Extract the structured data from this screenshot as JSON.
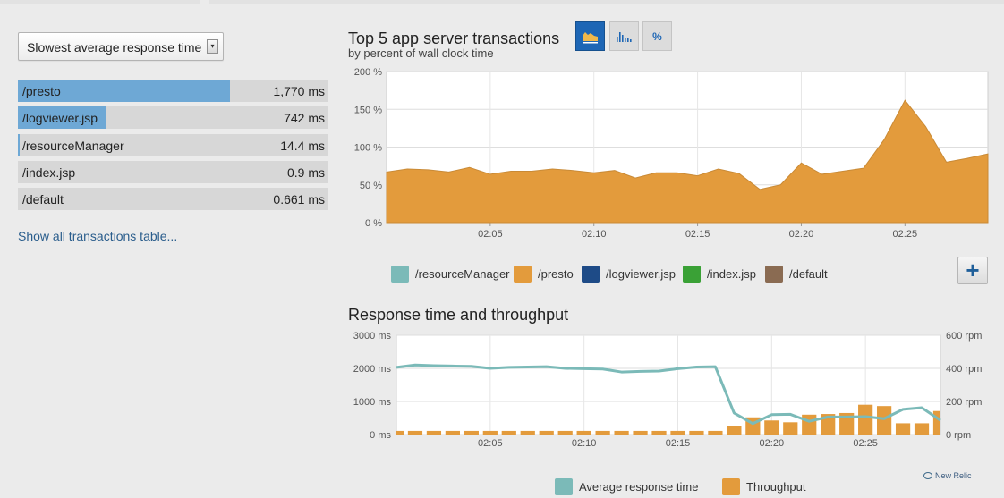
{
  "sort_select": {
    "selected": "Slowest average response time"
  },
  "transactions": [
    {
      "name": "/presto",
      "value": "1,770 ms",
      "fill": 0.685
    },
    {
      "name": "/logviewer.jsp",
      "value": "742 ms",
      "fill": 0.287
    },
    {
      "name": "/resourceManager",
      "value": "14.4 ms",
      "fill": 0.006
    },
    {
      "name": "/index.jsp",
      "value": "0.9 ms",
      "fill": 0
    },
    {
      "name": "/default",
      "value": "0.661 ms",
      "fill": 0
    }
  ],
  "show_all_link": "Show all transactions table...",
  "chart_toggle": {
    "selected": "area",
    "buttons": [
      {
        "name": "area-chart-icon"
      },
      {
        "name": "bar-chart-icon"
      },
      {
        "name": "percent-icon",
        "label": "%"
      }
    ]
  },
  "colors": {
    "accent": "#1d66b5",
    "presto": "#e39b3c",
    "resourceManager": "#7bbab8",
    "logviewer": "#1e4b87",
    "index": "#3aa136",
    "default": "#8a6b52",
    "bar_fill": "#6ea8d5"
  },
  "add_button_label": "+",
  "chart_data": [
    {
      "type": "area",
      "title": "Top 5 app server transactions",
      "subtitle": "by percent of wall clock time",
      "y_tick_labels": [
        "0 %",
        "50 %",
        "100 %",
        "150 %",
        "200 %"
      ],
      "y_ticks": [
        0,
        50,
        100,
        150,
        200
      ],
      "ylim": [
        0,
        200
      ],
      "xlim": [
        0,
        29
      ],
      "x_ticks": [
        5,
        10,
        15,
        20,
        25
      ],
      "x_tick_labels": [
        "02:05",
        "02:10",
        "02:15",
        "02:20",
        "02:25"
      ],
      "grid": true,
      "legend_position": "bottom",
      "series": [
        {
          "name": "/presto",
          "x": [
            0,
            1,
            2,
            3,
            4,
            5,
            6,
            7,
            8,
            9,
            10,
            11,
            12,
            13,
            14,
            15,
            16,
            17,
            18,
            19,
            20,
            21,
            22,
            23,
            24,
            25,
            26,
            27,
            28,
            29
          ],
          "values": [
            67,
            71,
            70,
            67,
            73,
            64,
            68,
            68,
            71,
            69,
            66,
            69,
            59,
            66,
            66,
            62,
            71,
            65,
            44,
            50,
            79,
            64,
            68,
            72,
            110,
            162,
            127,
            80,
            85,
            91
          ]
        },
        {
          "name": "/resourceManager",
          "values": []
        },
        {
          "name": "/logviewer.jsp",
          "values": []
        },
        {
          "name": "/index.jsp",
          "values": []
        },
        {
          "name": "/default",
          "values": []
        }
      ]
    },
    {
      "type": "line+bar",
      "title": "Response time and throughput",
      "y_tick_labels": [
        "0 ms",
        "1000 ms",
        "2000 ms",
        "3000 ms"
      ],
      "y_ticks": [
        0,
        1000,
        2000,
        3000
      ],
      "ylim": [
        0,
        3000
      ],
      "y2_tick_labels": [
        "0 rpm",
        "200 rpm",
        "400 rpm",
        "600 rpm"
      ],
      "y2_ticks": [
        0,
        200,
        400,
        600
      ],
      "y2lim": [
        0,
        600
      ],
      "xlim": [
        0,
        29
      ],
      "x_ticks": [
        5,
        10,
        15,
        20,
        25
      ],
      "x_tick_labels": [
        "02:05",
        "02:10",
        "02:15",
        "02:20",
        "02:25"
      ],
      "grid": true,
      "legend_position": "bottom",
      "series": [
        {
          "name": "Average response time",
          "axis": "left",
          "x": [
            0,
            1,
            2,
            3,
            4,
            5,
            6,
            7,
            8,
            9,
            10,
            11,
            12,
            13,
            14,
            15,
            16,
            17,
            18,
            19,
            20,
            21,
            22,
            23,
            24,
            25,
            26,
            27,
            28,
            29
          ],
          "values": [
            2030,
            2100,
            2080,
            2070,
            2060,
            2000,
            2030,
            2040,
            2050,
            2000,
            1990,
            1980,
            1890,
            1910,
            1920,
            1990,
            2040,
            2050,
            650,
            330,
            600,
            610,
            400,
            530,
            530,
            540,
            480,
            760,
            810,
            430
          ]
        },
        {
          "name": "Throughput",
          "axis": "right",
          "x": [
            0,
            1,
            2,
            3,
            4,
            5,
            6,
            7,
            8,
            9,
            10,
            11,
            12,
            13,
            14,
            15,
            16,
            17,
            18,
            19,
            20,
            21,
            22,
            23,
            24,
            25,
            26,
            27,
            28,
            29
          ],
          "values": [
            22,
            22,
            22,
            22,
            22,
            22,
            22,
            22,
            22,
            22,
            22,
            22,
            22,
            22,
            22,
            22,
            22,
            22,
            50,
            104,
            85,
            74,
            120,
            124,
            130,
            180,
            172,
            68,
            68,
            142
          ]
        }
      ]
    }
  ],
  "branding": {
    "name": "New Relic"
  }
}
